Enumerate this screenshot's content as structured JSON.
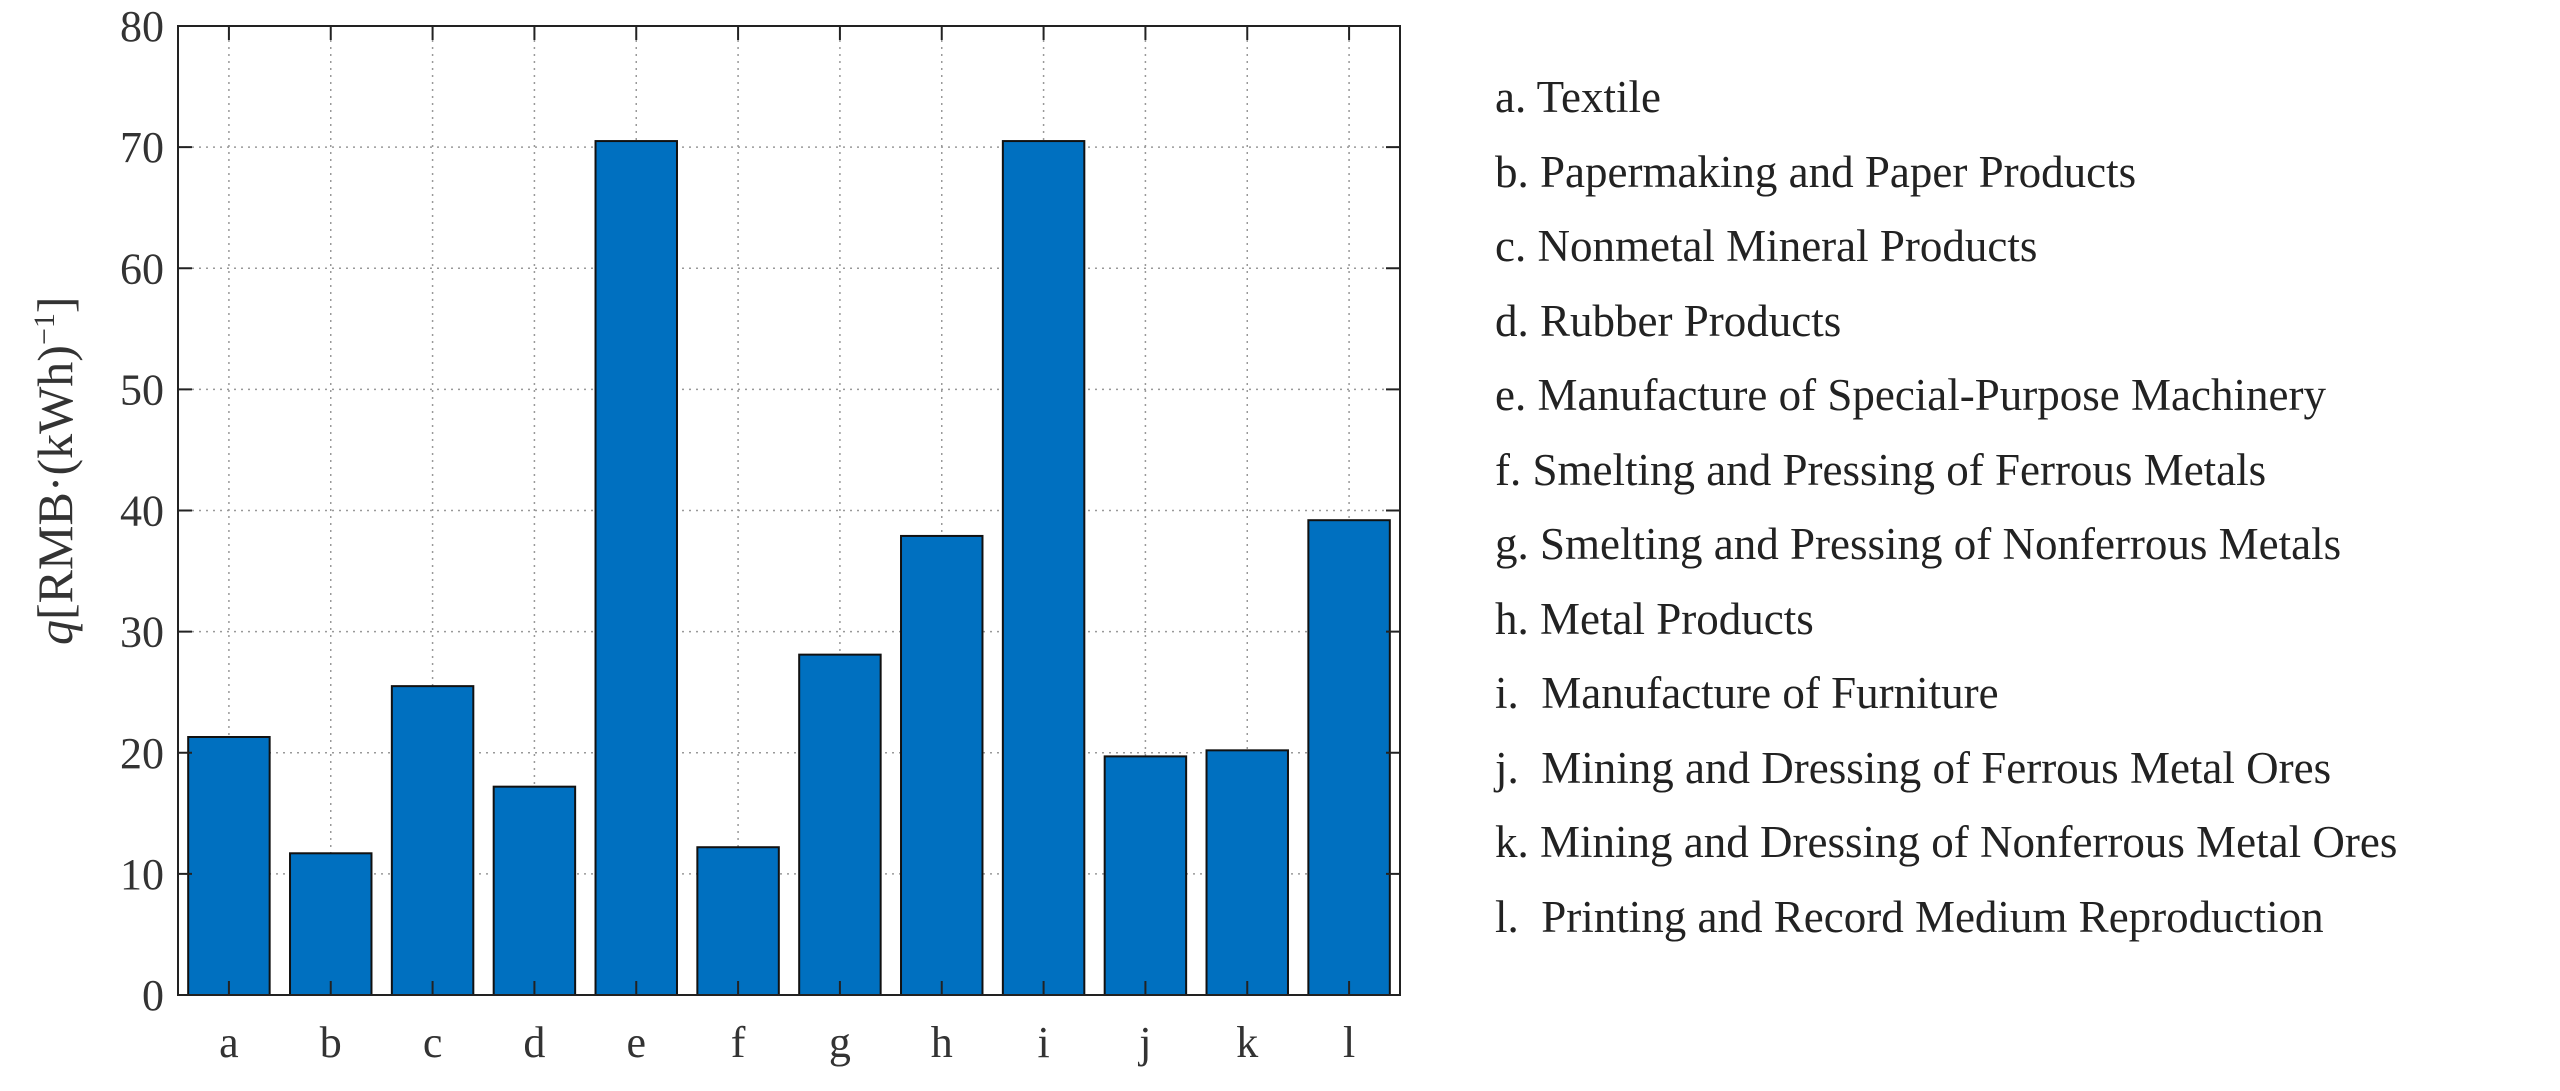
{
  "chart_data": {
    "type": "bar",
    "categories": [
      "a",
      "b",
      "c",
      "d",
      "e",
      "f",
      "g",
      "h",
      "i",
      "j",
      "k",
      "l"
    ],
    "values": [
      21.3,
      11.7,
      25.5,
      17.2,
      70.5,
      12.2,
      28.1,
      37.9,
      70.5,
      19.7,
      20.2,
      39.2
    ],
    "ylim": [
      0,
      80
    ],
    "yticks": [
      0,
      10,
      20,
      30,
      40,
      50,
      60,
      70,
      80
    ],
    "ylabel_prefix": "q",
    "ylabel_main": "[RMB·(kWh)",
    "ylabel_sup": "−1",
    "ylabel_close": "]",
    "bar_color": "#0070c0",
    "grid": "dotted",
    "legend_entries": [
      "a. Textile",
      "b. Papermaking and Paper Products",
      "c. Nonmetal Mineral Products",
      "d. Rubber Products",
      "e. Manufacture of Special-Purpose Machinery",
      "f. Smelting and Pressing of Ferrous Metals",
      "g. Smelting and Pressing of Nonferrous Metals",
      "h. Metal Products",
      "i.  Manufacture of Furniture",
      "j.  Mining and Dressing of Ferrous Metal Ores",
      "k. Mining and Dressing of Nonferrous Metal Ores",
      "l.  Printing and Record Medium Reproduction"
    ]
  }
}
